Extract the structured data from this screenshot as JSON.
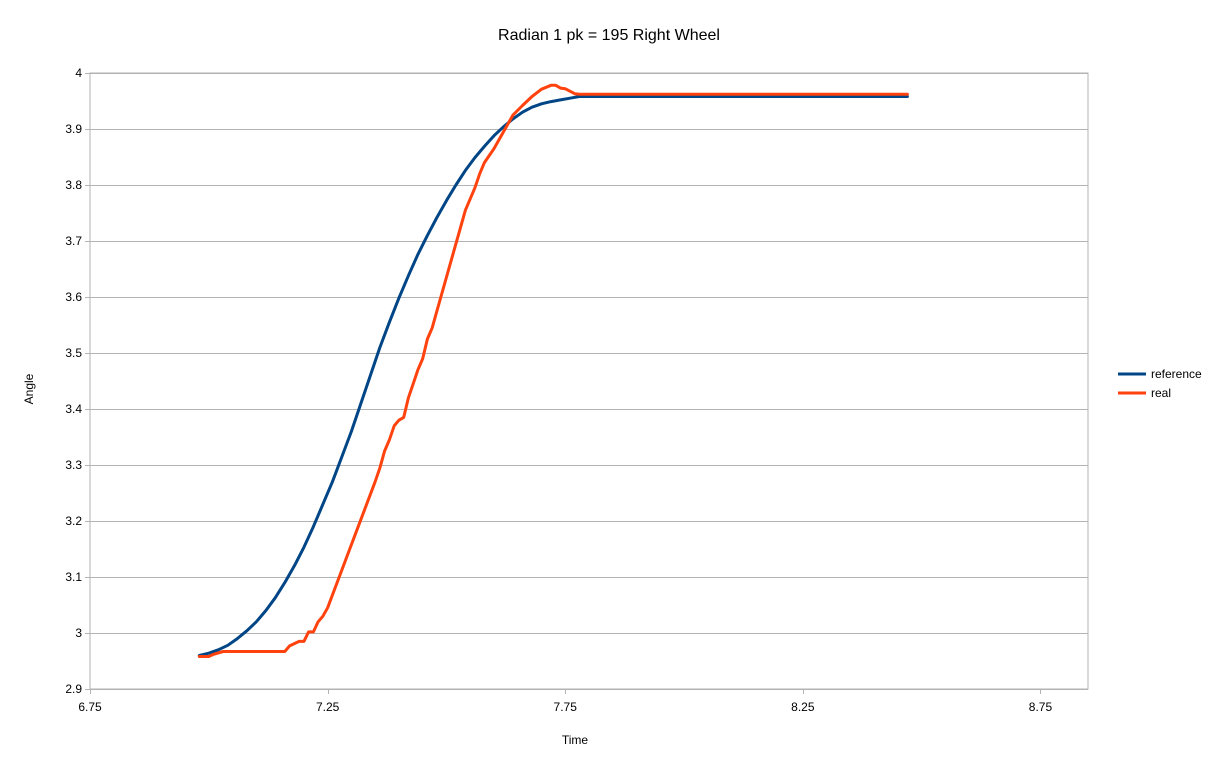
{
  "chart_data": {
    "type": "line",
    "title": "Radian 1 pk = 195 Right Wheel",
    "xlabel": "Time",
    "ylabel": "Angle",
    "xlim": [
      6.75,
      8.85
    ],
    "ylim": [
      2.9,
      4.0
    ],
    "xticks": [
      6.75,
      7.25,
      7.75,
      8.25,
      8.75
    ],
    "xtick_labels": [
      "6.75",
      "7.25",
      "7.75",
      "8.25",
      "8.75"
    ],
    "yticks": [
      2.9,
      3.0,
      3.1,
      3.2,
      3.3,
      3.4,
      3.5,
      3.6,
      3.7,
      3.8,
      3.9,
      4.0
    ],
    "ytick_labels": [
      "2.9",
      "3",
      "3.1",
      "3.2",
      "3.3",
      "3.4",
      "3.5",
      "3.6",
      "3.7",
      "3.8",
      "3.9",
      "4"
    ],
    "grid": true,
    "legend_position": "right",
    "series": [
      {
        "name": "reference",
        "color": "#004586",
        "x": [
          6.98,
          7.0,
          7.02,
          7.04,
          7.06,
          7.08,
          7.1,
          7.12,
          7.14,
          7.16,
          7.18,
          7.2,
          7.22,
          7.24,
          7.26,
          7.28,
          7.3,
          7.32,
          7.34,
          7.36,
          7.38,
          7.4,
          7.42,
          7.44,
          7.46,
          7.48,
          7.5,
          7.52,
          7.54,
          7.56,
          7.58,
          7.6,
          7.62,
          7.64,
          7.66,
          7.68,
          7.7,
          7.72,
          7.74,
          7.76,
          7.78,
          7.8,
          8.0,
          8.2,
          8.4,
          8.47
        ],
        "values": [
          2.96,
          2.964,
          2.97,
          2.978,
          2.99,
          3.004,
          3.02,
          3.04,
          3.063,
          3.09,
          3.12,
          3.153,
          3.19,
          3.23,
          3.27,
          3.315,
          3.36,
          3.41,
          3.46,
          3.51,
          3.555,
          3.598,
          3.638,
          3.676,
          3.71,
          3.742,
          3.772,
          3.8,
          3.826,
          3.849,
          3.869,
          3.888,
          3.904,
          3.918,
          3.93,
          3.939,
          3.945,
          3.949,
          3.952,
          3.955,
          3.958,
          3.958,
          3.958,
          3.958,
          3.958,
          3.958
        ]
      },
      {
        "name": "real",
        "color": "#ff420e",
        "x": [
          6.98,
          7.0,
          7.01,
          7.03,
          7.05,
          7.07,
          7.1,
          7.13,
          7.16,
          7.17,
          7.19,
          7.2,
          7.21,
          7.22,
          7.23,
          7.24,
          7.25,
          7.27,
          7.29,
          7.31,
          7.33,
          7.35,
          7.36,
          7.37,
          7.38,
          7.39,
          7.4,
          7.41,
          7.42,
          7.43,
          7.44,
          7.45,
          7.46,
          7.47,
          7.48,
          7.5,
          7.52,
          7.54,
          7.56,
          7.57,
          7.58,
          7.6,
          7.62,
          7.64,
          7.66,
          7.68,
          7.7,
          7.72,
          7.73,
          7.74,
          7.75,
          7.77,
          7.78,
          7.8,
          8.0,
          8.2,
          8.4,
          8.47
        ],
        "values": [
          2.958,
          2.958,
          2.962,
          2.967,
          2.967,
          2.967,
          2.967,
          2.967,
          2.967,
          2.977,
          2.985,
          2.985,
          3.002,
          3.002,
          3.02,
          3.03,
          3.045,
          3.09,
          3.135,
          3.18,
          3.225,
          3.27,
          3.295,
          3.325,
          3.345,
          3.37,
          3.38,
          3.385,
          3.42,
          3.445,
          3.47,
          3.49,
          3.525,
          3.545,
          3.575,
          3.635,
          3.695,
          3.755,
          3.795,
          3.82,
          3.84,
          3.865,
          3.895,
          3.925,
          3.942,
          3.958,
          3.971,
          3.978,
          3.978,
          3.973,
          3.972,
          3.963,
          3.962,
          3.962,
          3.962,
          3.962,
          3.962,
          3.962
        ]
      }
    ]
  }
}
